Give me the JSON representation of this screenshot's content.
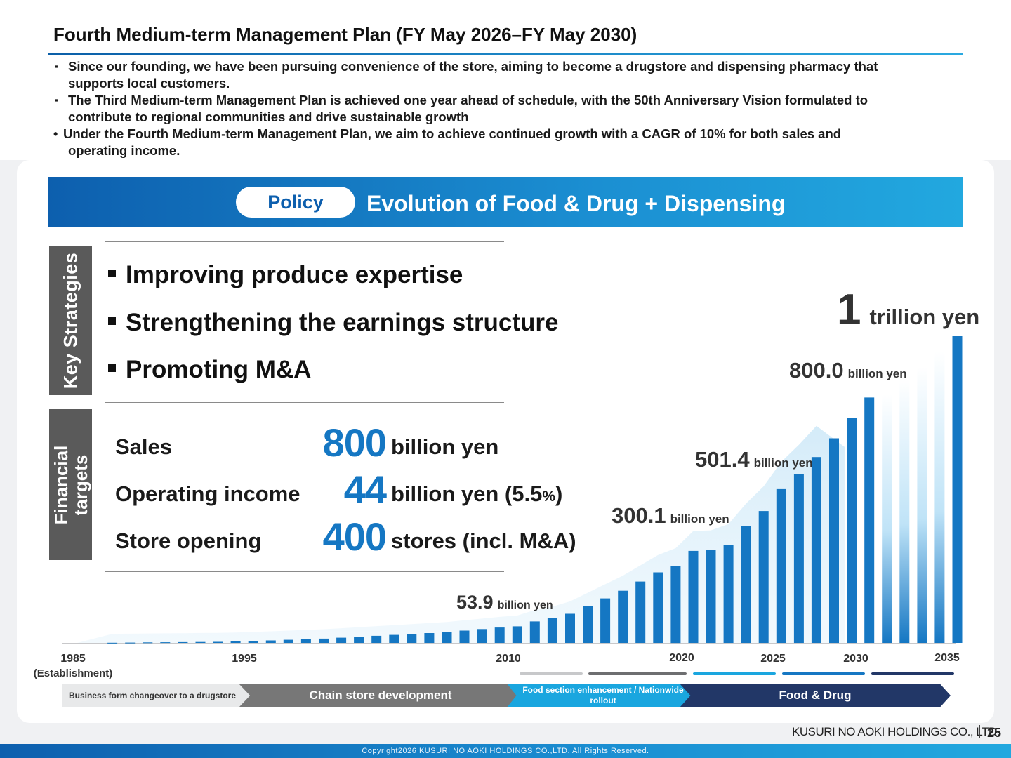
{
  "title": "Fourth Medium-term Management Plan (FY May 2026–FY May 2030)",
  "bullets": {
    "b1_line1": "Since our founding, we have been pursuing convenience of the store, aiming to become a drugstore and dispensing pharmacy that",
    "b1_line2": "supports local customers.",
    "b2_line1": "The Third Medium-term Management Plan is achieved one year ahead of schedule, with the 50th Anniversary Vision formulated to",
    "b2_line2": "contribute to regional communities and drive sustainable growth",
    "b3_line1": "Under the Fourth Medium-term Management Plan, we aim to achieve continued growth with a CAGR of 10% for both sales and",
    "b3_line2": "operating income.",
    "square_mark": "▪",
    "dot_mark": "•"
  },
  "policy": {
    "pill": "Policy",
    "title": "Evolution of Food & Drug + Dispensing"
  },
  "key_strategies": {
    "label": "Key Strategies",
    "items": [
      "Improving produce expertise",
      "Strengthening the earnings structure",
      "Promoting M&A"
    ]
  },
  "financial_targets": {
    "label_line1": "Financial",
    "label_line2": "targets",
    "rows": [
      {
        "label": "Sales",
        "value": "800",
        "unit": "billion yen"
      },
      {
        "label": "Operating income",
        "value": "44",
        "unit": "billion yen (",
        "unit_num": "5.5",
        "unit_pct": "%",
        "unit_close": ")"
      },
      {
        "label": "Store opening",
        "value": "400",
        "unit": "stores (incl. M&A)"
      }
    ]
  },
  "chart_data": {
    "type": "bar",
    "ylabel": "",
    "xlabel": "",
    "years": [
      1987,
      1988,
      1989,
      1990,
      1991,
      1992,
      1993,
      1994,
      1995,
      1996,
      1997,
      1998,
      1999,
      2000,
      2001,
      2002,
      2003,
      2004,
      2005,
      2006,
      2007,
      2008,
      2009,
      2010,
      2011,
      2012,
      2013,
      2014,
      2015,
      2016,
      2017,
      2018,
      2019,
      2020,
      2021,
      2022,
      2023,
      2024,
      2025,
      2026,
      2027,
      2028,
      2029,
      2030,
      2031,
      2032,
      2033,
      2034,
      2035
    ],
    "values": [
      0.5,
      1,
      1.5,
      2,
      2.5,
      3,
      3.5,
      4.5,
      6,
      8,
      10,
      12,
      14,
      17,
      20,
      23,
      26,
      29,
      32,
      35,
      40,
      45,
      50,
      53.9,
      70,
      80,
      95,
      120,
      145,
      170,
      200,
      230,
      250,
      300.1,
      302,
      320,
      380,
      430,
      501.4,
      551,
      606,
      667,
      733,
      800.0,
      810,
      860,
      900,
      950,
      1000
    ],
    "plan_bars_faded": [
      2031,
      2032,
      2033,
      2034
    ],
    "x_tick_labels": [
      {
        "year": 1985,
        "label": "1985"
      },
      {
        "year": 1995,
        "label": "1995"
      },
      {
        "year": 2010,
        "label": "2010"
      },
      {
        "year": 2020,
        "label": "2020"
      },
      {
        "year": 2025,
        "label": "2025"
      },
      {
        "year": 2030,
        "label": "2030"
      },
      {
        "year": 2035,
        "label": "2035"
      }
    ],
    "x_sub_label": "(Establishment)",
    "annotations": [
      {
        "year": 2010,
        "value": "53.9",
        "unit": "billion yen"
      },
      {
        "year": 2020,
        "value": "300.1",
        "unit": "billion yen"
      },
      {
        "year": 2025,
        "value": "501.4",
        "unit": "billion yen"
      },
      {
        "year": 2030,
        "value": "800.0",
        "unit": "billion yen"
      },
      {
        "year": 2035,
        "value": "1",
        "unit": "trillion yen"
      }
    ],
    "bar_color": "#1577c3"
  },
  "phases": [
    {
      "label": "Business form changeover to a drugstore"
    },
    {
      "label": "Chain store development"
    },
    {
      "label": "Food section enhancement / Nationwide rollout"
    },
    {
      "label": "Food & Drug"
    }
  ],
  "phase_segment_colors": [
    "#c7c8ca",
    "#6d6e70",
    "#1aa6df",
    "#1577c3",
    "#223767"
  ],
  "company": "KUSURI NO AOKI HOLDINGS CO., LTD.",
  "page_number": "25",
  "copyright": "Copyright2026 KUSURI NO AOKI HOLDINGS CO.,LTD. All Rights Reserved."
}
